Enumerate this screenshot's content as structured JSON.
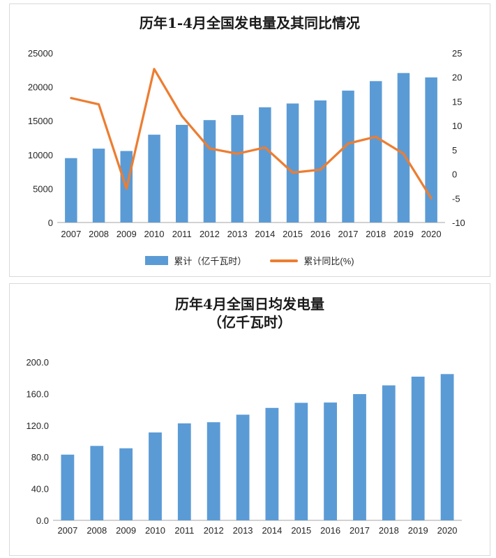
{
  "colors": {
    "bar": "#5B9BD5",
    "line": "#ED7D31",
    "axis_line": "#a6a6a6",
    "text": "#262626",
    "panel_border": "#d9d9d9"
  },
  "chart_data": [
    {
      "type": "bar",
      "combo": "bar+line",
      "title": "历年1-4月全国发电量及其同比情况",
      "categories": [
        "2007",
        "2008",
        "2009",
        "2010",
        "2011",
        "2012",
        "2013",
        "2014",
        "2015",
        "2016",
        "2017",
        "2018",
        "2019",
        "2020"
      ],
      "series": [
        {
          "name": "累计（亿千瓦时）",
          "type": "bar",
          "axis": "left",
          "values": [
            9500,
            10900,
            10550,
            12950,
            14400,
            15100,
            15850,
            17000,
            17550,
            18000,
            19450,
            20850,
            22050,
            21400
          ]
        },
        {
          "name": "累计同比(%)",
          "type": "line",
          "axis": "right",
          "values": [
            15.7,
            14.4,
            -3.0,
            21.7,
            12.0,
            5.3,
            4.2,
            5.5,
            0.3,
            0.9,
            6.3,
            7.7,
            4.2,
            -5.0
          ]
        }
      ],
      "left_axis": {
        "min": 0,
        "max": 25000,
        "ticks": [
          "0",
          "5000",
          "10000",
          "15000",
          "20000",
          "25000"
        ]
      },
      "right_axis": {
        "min": -10,
        "max": 25,
        "ticks": [
          "-10",
          "-5",
          "0",
          "5",
          "10",
          "15",
          "20",
          "25"
        ]
      },
      "grid": "off",
      "legend_position": "bottom",
      "legend": [
        {
          "label": "累计（亿千瓦时）",
          "marker": "bar"
        },
        {
          "label": "累计同比(%)",
          "marker": "line"
        }
      ]
    },
    {
      "type": "bar",
      "title": "历年4月全国日均发电量",
      "subtitle": "（亿千瓦时）",
      "categories": [
        "2007",
        "2008",
        "2009",
        "2010",
        "2011",
        "2012",
        "2013",
        "2014",
        "2015",
        "2016",
        "2017",
        "2018",
        "2019",
        "2020"
      ],
      "values": [
        83.0,
        94.0,
        91.0,
        111.0,
        122.5,
        124.0,
        133.5,
        142.0,
        148.5,
        148.8,
        159.5,
        170.5,
        181.5,
        184.8
      ],
      "y_axis": {
        "min": 0,
        "max": 200,
        "ticks": [
          "0.0",
          "40.0",
          "80.0",
          "120.0",
          "160.0",
          "200.0"
        ]
      },
      "grid": "off",
      "legend_position": "none"
    }
  ]
}
